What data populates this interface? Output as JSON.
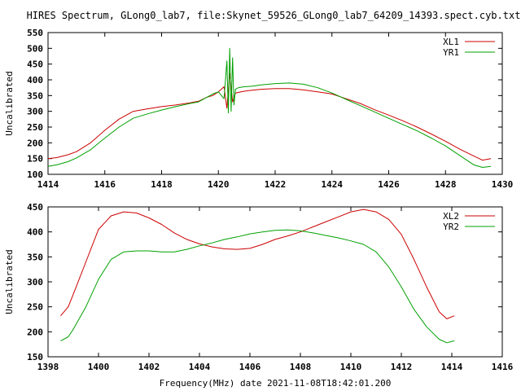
{
  "colors": {
    "red": "#cc0000",
    "green": "#00a000"
  },
  "chart_data": [
    {
      "type": "line",
      "title": "HIRES Spectrum, GLong0_lab7, file:Skynet_59526_GLong0_lab7_64209_14393.spect.cyb.txt",
      "xlabel": "",
      "ylabel": "Uncalibrated",
      "xlim": [
        1414,
        1430
      ],
      "ylim": [
        100,
        550
      ],
      "xticks": [
        "1414",
        "1416",
        "1418",
        "1420",
        "1422",
        "1424",
        "1426",
        "1428",
        "1430"
      ],
      "yticks": [
        "100",
        "150",
        "200",
        "250",
        "300",
        "350",
        "400",
        "450",
        "500",
        "550"
      ],
      "grid": false,
      "legend": "top-right",
      "series": [
        {
          "name": "XL1",
          "color": "#cc0000",
          "points": [
            [
              1414.0,
              150
            ],
            [
              1414.3,
              153
            ],
            [
              1414.7,
              162
            ],
            [
              1415.0,
              172
            ],
            [
              1415.5,
              200
            ],
            [
              1416.0,
              240
            ],
            [
              1416.5,
              275
            ],
            [
              1417.0,
              300
            ],
            [
              1417.5,
              308
            ],
            [
              1418.0,
              315
            ],
            [
              1418.5,
              320
            ],
            [
              1419.0,
              327
            ],
            [
              1419.3,
              332
            ],
            [
              1419.6,
              345
            ],
            [
              1419.8,
              350
            ],
            [
              1420.0,
              362
            ],
            [
              1420.2,
              378
            ],
            [
              1420.3,
              310
            ],
            [
              1420.4,
              420
            ],
            [
              1420.5,
              330
            ],
            [
              1420.6,
              358
            ],
            [
              1420.8,
              362
            ],
            [
              1421.0,
              365
            ],
            [
              1421.5,
              370
            ],
            [
              1422.0,
              372
            ],
            [
              1422.5,
              372
            ],
            [
              1423.0,
              368
            ],
            [
              1423.5,
              362
            ],
            [
              1424.0,
              355
            ],
            [
              1424.5,
              340
            ],
            [
              1425.0,
              325
            ],
            [
              1425.5,
              305
            ],
            [
              1426.0,
              288
            ],
            [
              1426.5,
              270
            ],
            [
              1427.0,
              250
            ],
            [
              1427.5,
              228
            ],
            [
              1428.0,
              205
            ],
            [
              1428.5,
              180
            ],
            [
              1429.0,
              158
            ],
            [
              1429.3,
              145
            ],
            [
              1429.6,
              150
            ]
          ]
        },
        {
          "name": "YR1",
          "color": "#00a000",
          "points": [
            [
              1414.0,
              125
            ],
            [
              1414.3,
              130
            ],
            [
              1414.7,
              140
            ],
            [
              1415.0,
              152
            ],
            [
              1415.5,
              178
            ],
            [
              1416.0,
              215
            ],
            [
              1416.5,
              250
            ],
            [
              1417.0,
              278
            ],
            [
              1417.5,
              292
            ],
            [
              1418.0,
              304
            ],
            [
              1418.5,
              315
            ],
            [
              1419.0,
              325
            ],
            [
              1419.3,
              330
            ],
            [
              1419.6,
              345
            ],
            [
              1419.8,
              355
            ],
            [
              1420.0,
              362
            ],
            [
              1420.2,
              340
            ],
            [
              1420.3,
              460
            ],
            [
              1420.35,
              295
            ],
            [
              1420.4,
              500
            ],
            [
              1420.45,
              300
            ],
            [
              1420.5,
              470
            ],
            [
              1420.55,
              320
            ],
            [
              1420.6,
              370
            ],
            [
              1420.7,
              375
            ],
            [
              1420.9,
              378
            ],
            [
              1421.2,
              380
            ],
            [
              1421.5,
              384
            ],
            [
              1422.0,
              388
            ],
            [
              1422.5,
              390
            ],
            [
              1423.0,
              386
            ],
            [
              1423.5,
              375
            ],
            [
              1424.0,
              358
            ],
            [
              1424.5,
              338
            ],
            [
              1425.0,
              318
            ],
            [
              1425.5,
              298
            ],
            [
              1426.0,
              278
            ],
            [
              1426.5,
              258
            ],
            [
              1427.0,
              238
            ],
            [
              1427.5,
              215
            ],
            [
              1428.0,
              190
            ],
            [
              1428.5,
              160
            ],
            [
              1429.0,
              130
            ],
            [
              1429.3,
              122
            ],
            [
              1429.6,
              125
            ]
          ]
        }
      ]
    },
    {
      "type": "line",
      "title": "",
      "xlabel": "Frequency(MHz) date 2021-11-08T18:42:01.200",
      "ylabel": "Uncalibrated",
      "xlim": [
        1398,
        1416
      ],
      "ylim": [
        150,
        450
      ],
      "xticks": [
        "1398",
        "1400",
        "1402",
        "1404",
        "1406",
        "1408",
        "1410",
        "1412",
        "1414",
        "1416"
      ],
      "yticks": [
        "150",
        "200",
        "250",
        "300",
        "350",
        "400",
        "450"
      ],
      "grid": false,
      "legend": "top-right",
      "series": [
        {
          "name": "XL2",
          "color": "#cc0000",
          "points": [
            [
              1398.5,
              232
            ],
            [
              1398.8,
              250
            ],
            [
              1399.0,
              275
            ],
            [
              1399.5,
              340
            ],
            [
              1400.0,
              405
            ],
            [
              1400.5,
              432
            ],
            [
              1401.0,
              440
            ],
            [
              1401.5,
              438
            ],
            [
              1402.0,
              428
            ],
            [
              1402.5,
              415
            ],
            [
              1403.0,
              398
            ],
            [
              1403.5,
              385
            ],
            [
              1404.0,
              376
            ],
            [
              1404.5,
              370
            ],
            [
              1405.0,
              366
            ],
            [
              1405.5,
              365
            ],
            [
              1406.0,
              367
            ],
            [
              1406.5,
              375
            ],
            [
              1407.0,
              385
            ],
            [
              1407.5,
              392
            ],
            [
              1408.0,
              400
            ],
            [
              1408.5,
              410
            ],
            [
              1409.0,
              420
            ],
            [
              1409.5,
              430
            ],
            [
              1410.0,
              440
            ],
            [
              1410.5,
              445
            ],
            [
              1411.0,
              440
            ],
            [
              1411.5,
              425
            ],
            [
              1412.0,
              395
            ],
            [
              1412.5,
              345
            ],
            [
              1413.0,
              290
            ],
            [
              1413.5,
              240
            ],
            [
              1413.8,
              226
            ],
            [
              1414.1,
              232
            ]
          ]
        },
        {
          "name": "YR2",
          "color": "#00a000",
          "points": [
            [
              1398.5,
              182
            ],
            [
              1398.8,
              190
            ],
            [
              1399.0,
              205
            ],
            [
              1399.5,
              250
            ],
            [
              1400.0,
              305
            ],
            [
              1400.5,
              345
            ],
            [
              1401.0,
              360
            ],
            [
              1401.5,
              362
            ],
            [
              1402.0,
              362
            ],
            [
              1402.5,
              360
            ],
            [
              1403.0,
              360
            ],
            [
              1403.5,
              365
            ],
            [
              1404.0,
              372
            ],
            [
              1404.5,
              378
            ],
            [
              1405.0,
              385
            ],
            [
              1405.5,
              390
            ],
            [
              1406.0,
              396
            ],
            [
              1406.5,
              400
            ],
            [
              1407.0,
              403
            ],
            [
              1407.5,
              404
            ],
            [
              1408.0,
              402
            ],
            [
              1408.5,
              398
            ],
            [
              1409.0,
              393
            ],
            [
              1409.5,
              388
            ],
            [
              1410.0,
              382
            ],
            [
              1410.5,
              375
            ],
            [
              1411.0,
              360
            ],
            [
              1411.5,
              330
            ],
            [
              1412.0,
              290
            ],
            [
              1412.5,
              245
            ],
            [
              1413.0,
              210
            ],
            [
              1413.5,
              185
            ],
            [
              1413.8,
              178
            ],
            [
              1414.1,
              182
            ]
          ]
        }
      ]
    }
  ]
}
